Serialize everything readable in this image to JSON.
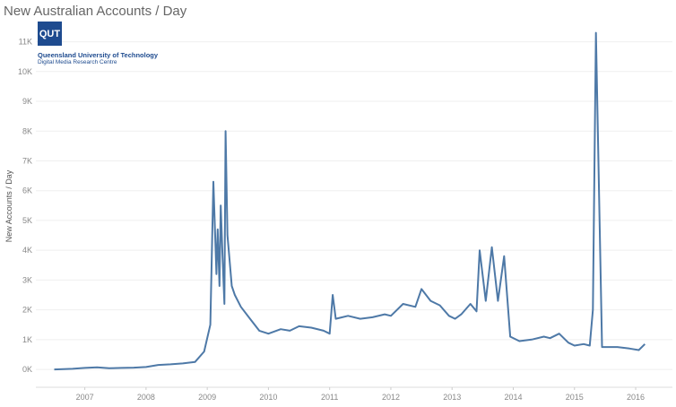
{
  "chart_data": {
    "type": "line",
    "title": "New Australian Accounts / Day",
    "xlabel": "",
    "ylabel": "New Accounts / Day",
    "xlim": [
      2006.2,
      2016.6
    ],
    "ylim": [
      -600,
      11800
    ],
    "grid": true,
    "y_ticks": [
      0,
      1000,
      2000,
      3000,
      4000,
      5000,
      6000,
      7000,
      8000,
      9000,
      10000,
      11000
    ],
    "y_tick_labels": [
      "0K",
      "1K",
      "2K",
      "3K",
      "4K",
      "5K",
      "6K",
      "7K",
      "8K",
      "9K",
      "10K",
      "11K"
    ],
    "x_ticks": [
      2007,
      2008,
      2009,
      2010,
      2011,
      2012,
      2013,
      2014,
      2015,
      2016
    ],
    "x_tick_labels": [
      "2007",
      "2008",
      "2009",
      "2010",
      "2011",
      "2012",
      "2013",
      "2014",
      "2015",
      "2016"
    ],
    "line_color": "#4e79a7",
    "series": [
      {
        "x": [
          2006.5,
          2006.8,
          2007.0,
          2007.2,
          2007.4,
          2007.6,
          2007.8,
          2008.0,
          2008.2,
          2008.4,
          2008.6,
          2008.8,
          2008.95,
          2009.05,
          2009.1,
          2009.15,
          2009.17,
          2009.2,
          2009.22,
          2009.25,
          2009.28,
          2009.3,
          2009.33,
          2009.36,
          2009.4,
          2009.45,
          2009.55,
          2009.7,
          2009.85,
          2010.0,
          2010.2,
          2010.35,
          2010.5,
          2010.7,
          2010.9,
          2011.0,
          2011.05,
          2011.1,
          2011.3,
          2011.5,
          2011.7,
          2011.9,
          2012.0,
          2012.2,
          2012.4,
          2012.5,
          2012.65,
          2012.8,
          2012.95,
          2013.05,
          2013.15,
          2013.3,
          2013.4,
          2013.45,
          2013.55,
          2013.65,
          2013.75,
          2013.85,
          2013.95,
          2014.1,
          2014.3,
          2014.5,
          2014.6,
          2014.75,
          2014.9,
          2015.0,
          2015.15,
          2015.25,
          2015.3,
          2015.35,
          2015.45,
          2015.7,
          2015.9,
          2016.05,
          2016.15
        ],
        "y": [
          0,
          20,
          50,
          70,
          40,
          50,
          60,
          80,
          150,
          170,
          200,
          250,
          600,
          1500,
          6300,
          3200,
          4700,
          2800,
          5500,
          3800,
          2200,
          8000,
          4500,
          3800,
          2800,
          2500,
          2100,
          1700,
          1300,
          1200,
          1350,
          1300,
          1450,
          1400,
          1300,
          1200,
          2500,
          1700,
          1800,
          1700,
          1750,
          1850,
          1800,
          2200,
          2100,
          2700,
          2300,
          2150,
          1800,
          1700,
          1850,
          2200,
          1950,
          4000,
          2300,
          4100,
          2300,
          3800,
          1100,
          950,
          1000,
          1100,
          1050,
          1200,
          900,
          800,
          850,
          800,
          2000,
          11300,
          750,
          750,
          700,
          650,
          850
        ]
      }
    ]
  },
  "logo": {
    "mark": "QUT",
    "name": "Queensland University of Technology",
    "unit": "Digital Media Research Centre"
  }
}
